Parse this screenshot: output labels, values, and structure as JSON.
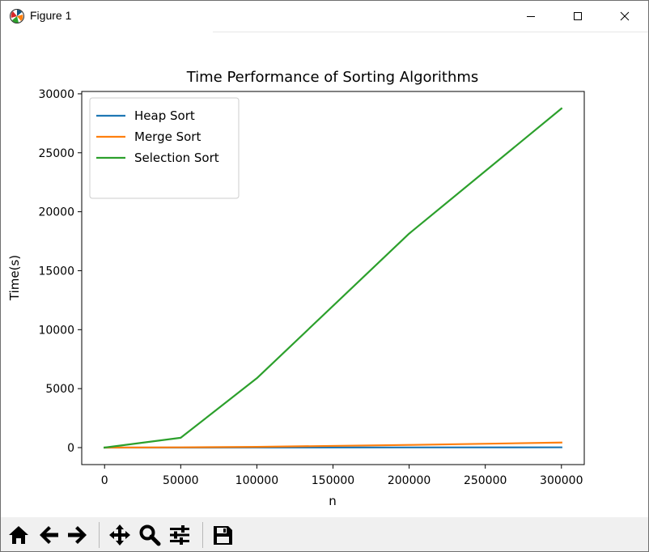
{
  "window": {
    "title": "Figure 1",
    "controls": [
      "minimize",
      "maximize",
      "close"
    ]
  },
  "toolbar": {
    "buttons": [
      {
        "name": "home",
        "icon": "home-icon"
      },
      {
        "name": "back",
        "icon": "arrow-left-icon"
      },
      {
        "name": "forward",
        "icon": "arrow-right-icon"
      },
      {
        "name": "pan",
        "icon": "move-icon"
      },
      {
        "name": "zoom",
        "icon": "magnifier-icon"
      },
      {
        "name": "subplots",
        "icon": "sliders-icon"
      },
      {
        "name": "save",
        "icon": "floppy-disk-icon"
      }
    ]
  },
  "chart_data": {
    "type": "line",
    "title": "Time Performance of Sorting Algorithms",
    "xlabel": "n",
    "ylabel": "Time(s)",
    "xlim": [
      -15000,
      315000
    ],
    "ylim": [
      -1440,
      30200
    ],
    "xticks": [
      0,
      50000,
      100000,
      150000,
      200000,
      250000,
      300000
    ],
    "yticks": [
      0,
      5000,
      10000,
      15000,
      20000,
      25000,
      30000
    ],
    "grid": false,
    "legend_position": "upper-left",
    "x": [
      0,
      50000,
      100000,
      200000,
      300000
    ],
    "series": [
      {
        "name": "Heap Sort",
        "color": "#1f77b4",
        "values": [
          0,
          3,
          8,
          16,
          25
        ]
      },
      {
        "name": "Merge Sort",
        "color": "#ff7f0e",
        "values": [
          0,
          25,
          60,
          230,
          430
        ]
      },
      {
        "name": "Selection Sort",
        "color": "#2ca02c",
        "values": [
          0,
          830,
          5880,
          18150,
          28750
        ]
      }
    ]
  }
}
